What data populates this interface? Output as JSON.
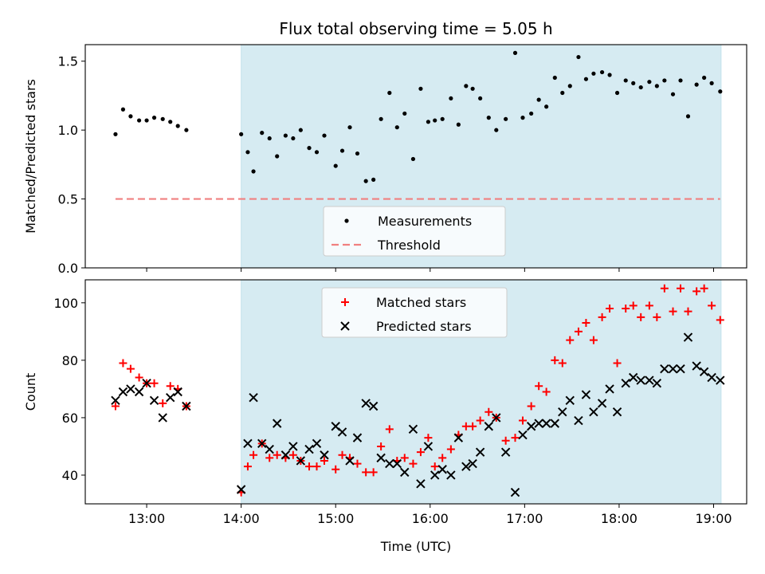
{
  "chart_data": {
    "type": "scatter",
    "title": "Flux total observing time = 5.05 h",
    "xlabel": "Time (UTC)",
    "x_unit": "hours UTC",
    "xlim": [
      12.35,
      19.35
    ],
    "x_ticks": [
      13,
      14,
      15,
      16,
      17,
      18,
      19
    ],
    "x_tick_labels": [
      "13:00",
      "14:00",
      "15:00",
      "16:00",
      "17:00",
      "18:00",
      "19:00"
    ],
    "shaded_span": {
      "x0": 14.0,
      "x1": 19.08,
      "color": "#add8e6"
    },
    "panels": [
      {
        "ylabel": "Matched/Predicted stars",
        "ylim": [
          0,
          1.62
        ],
        "y_ticks": [
          0.0,
          0.5,
          1.0,
          1.5
        ],
        "y_tick_labels": [
          "0.0",
          "0.5",
          "1.0",
          "1.5"
        ],
        "legend_placement": "lower-center",
        "series": [
          {
            "name": "Measurements",
            "kind": "dot",
            "color": "#000000",
            "x": [
              12.67,
              12.75,
              12.83,
              12.92,
              13.0,
              13.08,
              13.17,
              13.25,
              13.33,
              13.42,
              14.0,
              14.07,
              14.13,
              14.22,
              14.3,
              14.38,
              14.47,
              14.55,
              14.63,
              14.72,
              14.8,
              14.88,
              15.0,
              15.07,
              15.15,
              15.23,
              15.32,
              15.4,
              15.48,
              15.57,
              15.65,
              15.73,
              15.82,
              15.9,
              15.98,
              16.05,
              16.13,
              16.22,
              16.3,
              16.38,
              16.45,
              16.53,
              16.62,
              16.7,
              16.8,
              16.9,
              16.98,
              17.07,
              17.15,
              17.23,
              17.32,
              17.4,
              17.48,
              17.57,
              17.65,
              17.73,
              17.82,
              17.9,
              17.98,
              18.07,
              18.15,
              18.23,
              18.32,
              18.4,
              18.48,
              18.57,
              18.65,
              18.73,
              18.82,
              18.9,
              18.98,
              19.07
            ],
            "y": [
              0.97,
              1.15,
              1.1,
              1.07,
              1.07,
              1.09,
              1.08,
              1.06,
              1.03,
              1.0,
              0.97,
              0.84,
              0.7,
              0.98,
              0.94,
              0.81,
              0.96,
              0.94,
              1.0,
              0.87,
              0.84,
              0.96,
              0.74,
              0.85,
              1.02,
              0.83,
              0.63,
              0.64,
              1.08,
              1.27,
              1.02,
              1.12,
              0.79,
              1.3,
              1.06,
              1.07,
              1.08,
              1.23,
              1.04,
              1.32,
              1.3,
              1.23,
              1.09,
              1.0,
              1.08,
              1.56,
              1.09,
              1.12,
              1.22,
              1.17,
              1.38,
              1.27,
              1.32,
              1.53,
              1.37,
              1.41,
              1.42,
              1.4,
              1.27,
              1.36,
              1.34,
              1.31,
              1.35,
              1.32,
              1.36,
              1.26,
              1.36,
              1.1,
              1.33,
              1.38,
              1.34,
              1.28
            ]
          },
          {
            "name": "Threshold",
            "kind": "dashed-line",
            "color": "#f08080",
            "x": [
              12.67,
              19.07
            ],
            "y": [
              0.5,
              0.5
            ]
          }
        ]
      },
      {
        "ylabel": "Count",
        "ylim": [
          30,
          108
        ],
        "y_ticks": [
          40,
          60,
          80,
          100
        ],
        "y_tick_labels": [
          "40",
          "60",
          "80",
          "100"
        ],
        "legend_placement": "upper-center",
        "series": [
          {
            "name": "Matched stars",
            "kind": "plus",
            "color": "#ff0000",
            "x": [
              12.67,
              12.75,
              12.83,
              12.92,
              13.0,
              13.08,
              13.17,
              13.25,
              13.33,
              13.42,
              14.0,
              14.07,
              14.13,
              14.22,
              14.3,
              14.38,
              14.47,
              14.55,
              14.63,
              14.72,
              14.8,
              14.88,
              15.0,
              15.07,
              15.15,
              15.23,
              15.32,
              15.4,
              15.48,
              15.57,
              15.65,
              15.73,
              15.82,
              15.9,
              15.98,
              16.05,
              16.13,
              16.22,
              16.3,
              16.38,
              16.45,
              16.53,
              16.62,
              16.7,
              16.8,
              16.9,
              16.98,
              17.07,
              17.15,
              17.23,
              17.32,
              17.4,
              17.48,
              17.57,
              17.65,
              17.73,
              17.82,
              17.9,
              17.98,
              18.07,
              18.15,
              18.23,
              18.32,
              18.4,
              18.48,
              18.57,
              18.65,
              18.73,
              18.82,
              18.9,
              18.98,
              19.07
            ],
            "y": [
              64,
              79,
              77,
              74,
              72,
              72,
              65,
              71,
              70,
              64,
              34,
              43,
              47,
              51,
              46,
              47,
              46,
              47,
              45,
              43,
              43,
              45,
              42,
              47,
              46,
              44,
              41,
              41,
              50,
              56,
              45,
              46,
              44,
              48,
              53,
              43,
              46,
              49,
              54,
              57,
              57,
              59,
              62,
              60,
              52,
              53,
              59,
              64,
              71,
              69,
              80,
              79,
              87,
              90,
              93,
              87,
              95,
              98,
              79,
              98,
              99,
              95,
              99,
              95,
              105,
              97,
              105,
              97,
              104,
              105,
              99,
              94
            ]
          },
          {
            "name": "Predicted stars",
            "kind": "cross",
            "color": "#000000",
            "x": [
              12.67,
              12.75,
              12.83,
              12.92,
              13.0,
              13.08,
              13.17,
              13.25,
              13.33,
              13.42,
              14.0,
              14.07,
              14.13,
              14.22,
              14.3,
              14.38,
              14.47,
              14.55,
              14.63,
              14.72,
              14.8,
              14.88,
              15.0,
              15.07,
              15.15,
              15.23,
              15.32,
              15.4,
              15.48,
              15.57,
              15.65,
              15.73,
              15.82,
              15.9,
              15.98,
              16.05,
              16.13,
              16.22,
              16.3,
              16.38,
              16.45,
              16.53,
              16.62,
              16.7,
              16.8,
              16.9,
              16.98,
              17.07,
              17.15,
              17.23,
              17.32,
              17.4,
              17.48,
              17.57,
              17.65,
              17.73,
              17.82,
              17.9,
              17.98,
              18.07,
              18.15,
              18.23,
              18.32,
              18.4,
              18.48,
              18.57,
              18.65,
              18.73,
              18.82,
              18.9,
              18.98,
              19.07
            ],
            "y": [
              66,
              69,
              70,
              69,
              72,
              66,
              60,
              67,
              69,
              64,
              35,
              51,
              67,
              51,
              49,
              58,
              47,
              50,
              45,
              49,
              51,
              47,
              57,
              55,
              45,
              53,
              65,
              64,
              46,
              44,
              44,
              41,
              56,
              37,
              50,
              40,
              42,
              40,
              53,
              43,
              44,
              48,
              57,
              60,
              48,
              34,
              54,
              57,
              58,
              58,
              58,
              62,
              66,
              59,
              68,
              62,
              65,
              70,
              62,
              72,
              74,
              73,
              73,
              72,
              77,
              77,
              77,
              88,
              78,
              76,
              74,
              73
            ]
          }
        ]
      }
    ]
  }
}
